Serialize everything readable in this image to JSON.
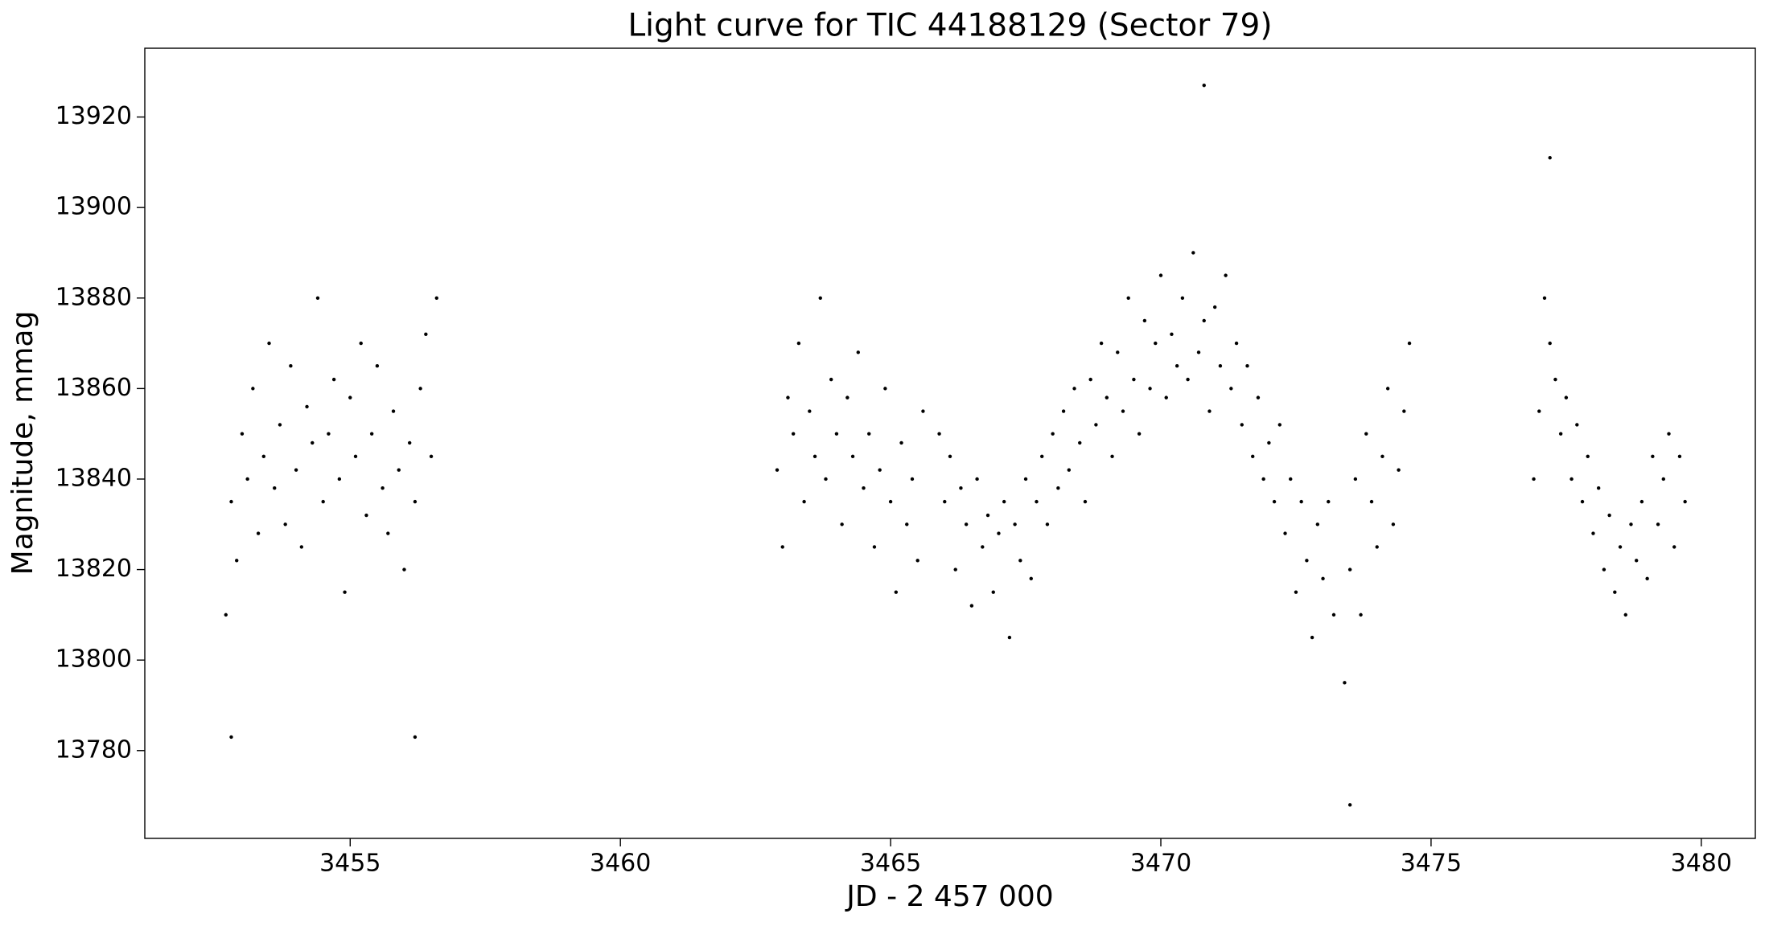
{
  "chart_data": {
    "type": "scatter",
    "title": "Light curve for TIC 44188129 (Sector 79)",
    "x_label": "JD - 2 457 000",
    "y_label": "Magnitude, mmag",
    "color": "#000000",
    "xlim": [
      3451.2,
      3481.0
    ],
    "ylim": [
      13760.6,
      13935.2
    ],
    "xticks": [
      3455,
      3460,
      3465,
      3470,
      3475,
      3480
    ],
    "yticks": [
      13780,
      13800,
      13820,
      13840,
      13860,
      13880,
      13900,
      13920
    ],
    "x": [
      3452.7,
      3452.8,
      3452.9,
      3453.0,
      3453.1,
      3453.2,
      3453.3,
      3453.4,
      3453.5,
      3453.6,
      3453.7,
      3453.8,
      3453.9,
      3454.0,
      3454.1,
      3454.2,
      3454.3,
      3454.4,
      3454.5,
      3454.6,
      3454.7,
      3454.8,
      3454.9,
      3455.0,
      3455.1,
      3455.2,
      3455.3,
      3455.4,
      3455.5,
      3455.6,
      3455.7,
      3455.8,
      3455.9,
      3456.0,
      3456.1,
      3456.2,
      3456.3,
      3456.4,
      3456.5,
      3456.6,
      3462.9,
      3463.0,
      3463.1,
      3463.2,
      3463.3,
      3463.4,
      3463.5,
      3463.6,
      3463.7,
      3463.8,
      3463.9,
      3464.0,
      3464.1,
      3464.2,
      3464.3,
      3464.4,
      3464.5,
      3464.6,
      3464.7,
      3464.8,
      3464.9,
      3465.0,
      3465.1,
      3465.2,
      3465.3,
      3465.4,
      3465.5,
      3465.6,
      3465.9,
      3466.0,
      3466.1,
      3466.2,
      3466.3,
      3466.4,
      3466.5,
      3466.6,
      3466.7,
      3466.8,
      3466.9,
      3467.0,
      3467.1,
      3467.2,
      3467.3,
      3467.4,
      3467.5,
      3467.6,
      3467.7,
      3467.8,
      3467.9,
      3468.0,
      3468.1,
      3468.2,
      3468.3,
      3468.4,
      3468.5,
      3468.6,
      3468.7,
      3468.8,
      3468.9,
      3469.0,
      3469.1,
      3469.2,
      3469.3,
      3469.4,
      3469.5,
      3469.6,
      3469.7,
      3469.8,
      3469.9,
      3470.0,
      3470.1,
      3470.2,
      3470.3,
      3470.4,
      3470.5,
      3470.6,
      3470.7,
      3470.8,
      3470.9,
      3471.0,
      3471.1,
      3471.2,
      3471.3,
      3471.4,
      3471.5,
      3471.6,
      3471.7,
      3471.8,
      3471.9,
      3472.0,
      3472.1,
      3472.2,
      3472.3,
      3472.4,
      3472.5,
      3472.6,
      3472.7,
      3472.8,
      3472.9,
      3473.0,
      3473.1,
      3473.2,
      3473.4,
      3473.5,
      3473.6,
      3473.7,
      3473.8,
      3473.9,
      3474.0,
      3474.1,
      3474.2,
      3474.3,
      3474.4,
      3474.5,
      3474.6,
      3476.9,
      3477.0,
      3477.1,
      3477.2,
      3477.3,
      3477.4,
      3477.5,
      3477.6,
      3477.7,
      3477.8,
      3477.9,
      3478.0,
      3478.1,
      3478.2,
      3478.3,
      3478.4,
      3478.5,
      3478.6,
      3478.7,
      3478.8,
      3478.9,
      3479.0,
      3479.1,
      3479.2,
      3479.3,
      3479.4,
      3479.5,
      3479.6,
      3479.7,
      3470.8,
      3473.5,
      3452.8,
      3456.2,
      3477.2
    ],
    "values": [
      13810,
      13835,
      13822,
      13850,
      13840,
      13860,
      13828,
      13845,
      13870,
      13838,
      13852,
      13830,
      13865,
      13842,
      13825,
      13856,
      13848,
      13880,
      13835,
      13850,
      13862,
      13840,
      13815,
      13858,
      13845,
      13870,
      13832,
      13850,
      13865,
      13838,
      13828,
      13855,
      13842,
      13820,
      13848,
      13835,
      13860,
      13872,
      13845,
      13880,
      13842,
      13825,
      13858,
      13850,
      13870,
      13835,
      13855,
      13845,
      13880,
      13840,
      13862,
      13850,
      13830,
      13858,
      13845,
      13868,
      13838,
      13850,
      13825,
      13842,
      13860,
      13835,
      13815,
      13848,
      13830,
      13840,
      13822,
      13855,
      13850,
      13835,
      13845,
      13820,
      13838,
      13830,
      13812,
      13840,
      13825,
      13832,
      13815,
      13828,
      13835,
      13805,
      13830,
      13822,
      13840,
      13818,
      13835,
      13845,
      13830,
      13850,
      13838,
      13855,
      13842,
      13860,
      13848,
      13835,
      13862,
      13852,
      13870,
      13858,
      13845,
      13868,
      13855,
      13880,
      13862,
      13850,
      13875,
      13860,
      13870,
      13885,
      13858,
      13872,
      13865,
      13880,
      13862,
      13890,
      13868,
      13875,
      13855,
      13878,
      13865,
      13885,
      13860,
      13870,
      13852,
      13865,
      13845,
      13858,
      13840,
      13848,
      13835,
      13852,
      13828,
      13840,
      13815,
      13835,
      13822,
      13805,
      13830,
      13818,
      13835,
      13810,
      13795,
      13820,
      13840,
      13810,
      13850,
      13835,
      13825,
      13845,
      13860,
      13830,
      13842,
      13855,
      13870,
      13840,
      13855,
      13880,
      13870,
      13862,
      13850,
      13858,
      13840,
      13852,
      13835,
      13845,
      13828,
      13838,
      13820,
      13832,
      13815,
      13825,
      13810,
      13830,
      13822,
      13835,
      13818,
      13845,
      13830,
      13840,
      13850,
      13825,
      13845,
      13835,
      13927,
      13768,
      13783,
      13783,
      13911
    ]
  }
}
